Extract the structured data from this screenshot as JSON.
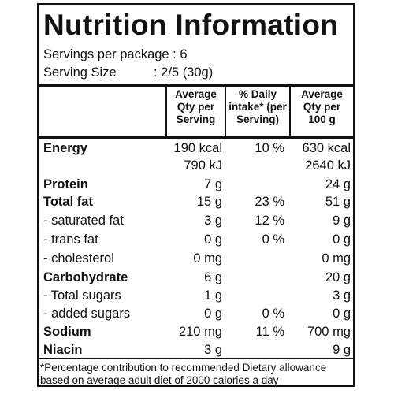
{
  "title": "Nutrition Information",
  "servings_per_package": "Servings per package : 6",
  "serving_size_label": "Serving Size",
  "serving_size_value": ": 2/5 (30g)",
  "headers": {
    "col1": "Average\nQty per\nServing",
    "col2": "% Daily\nintake* (per\nServing)",
    "col3": "Average\nQty per\n100 g"
  },
  "rows": [
    {
      "name": "Energy",
      "bold": true,
      "v1": "190 kcal",
      "v2": "10 %",
      "v3": "630 kcal"
    },
    {
      "name": "",
      "bold": false,
      "v1": "790 kJ",
      "v2": "",
      "v3": "2640 kJ"
    },
    {
      "name": "Protein",
      "bold": true,
      "v1": "7 g",
      "v2": "",
      "v3": "24 g"
    },
    {
      "name": "Total fat",
      "bold": true,
      "v1": "15 g",
      "v2": "23 %",
      "v3": "51 g"
    },
    {
      "name": "- saturated fat",
      "bold": false,
      "v1": "3 g",
      "v2": "12 %",
      "v3": "9 g"
    },
    {
      "name": "- trans fat",
      "bold": false,
      "v1": "0 g",
      "v2": "0 %",
      "v3": "0 g"
    },
    {
      "name": "- cholesterol",
      "bold": false,
      "v1": "0 mg",
      "v2": "",
      "v3": "0 mg"
    },
    {
      "name": "Carbohydrate",
      "bold": true,
      "v1": "6 g",
      "v2": "",
      "v3": "20 g"
    },
    {
      "name": "- Total sugars",
      "bold": false,
      "v1": "1 g",
      "v2": "",
      "v3": "3 g"
    },
    {
      "name": "- added sugars",
      "bold": false,
      "v1": "0 g",
      "v2": "0 %",
      "v3": "0 g"
    },
    {
      "name": "Sodium",
      "bold": true,
      "v1": "210 mg",
      "v2": "11 %",
      "v3": "700 mg"
    },
    {
      "name": "Niacin",
      "bold": true,
      "v1": "3 g",
      "v2": "",
      "v3": "9 g"
    }
  ],
  "footnote_line1": "*Percentage contribution to recommended Dietary allowance",
  "footnote_line2": "based on average adult diet of 2000 calories a day"
}
